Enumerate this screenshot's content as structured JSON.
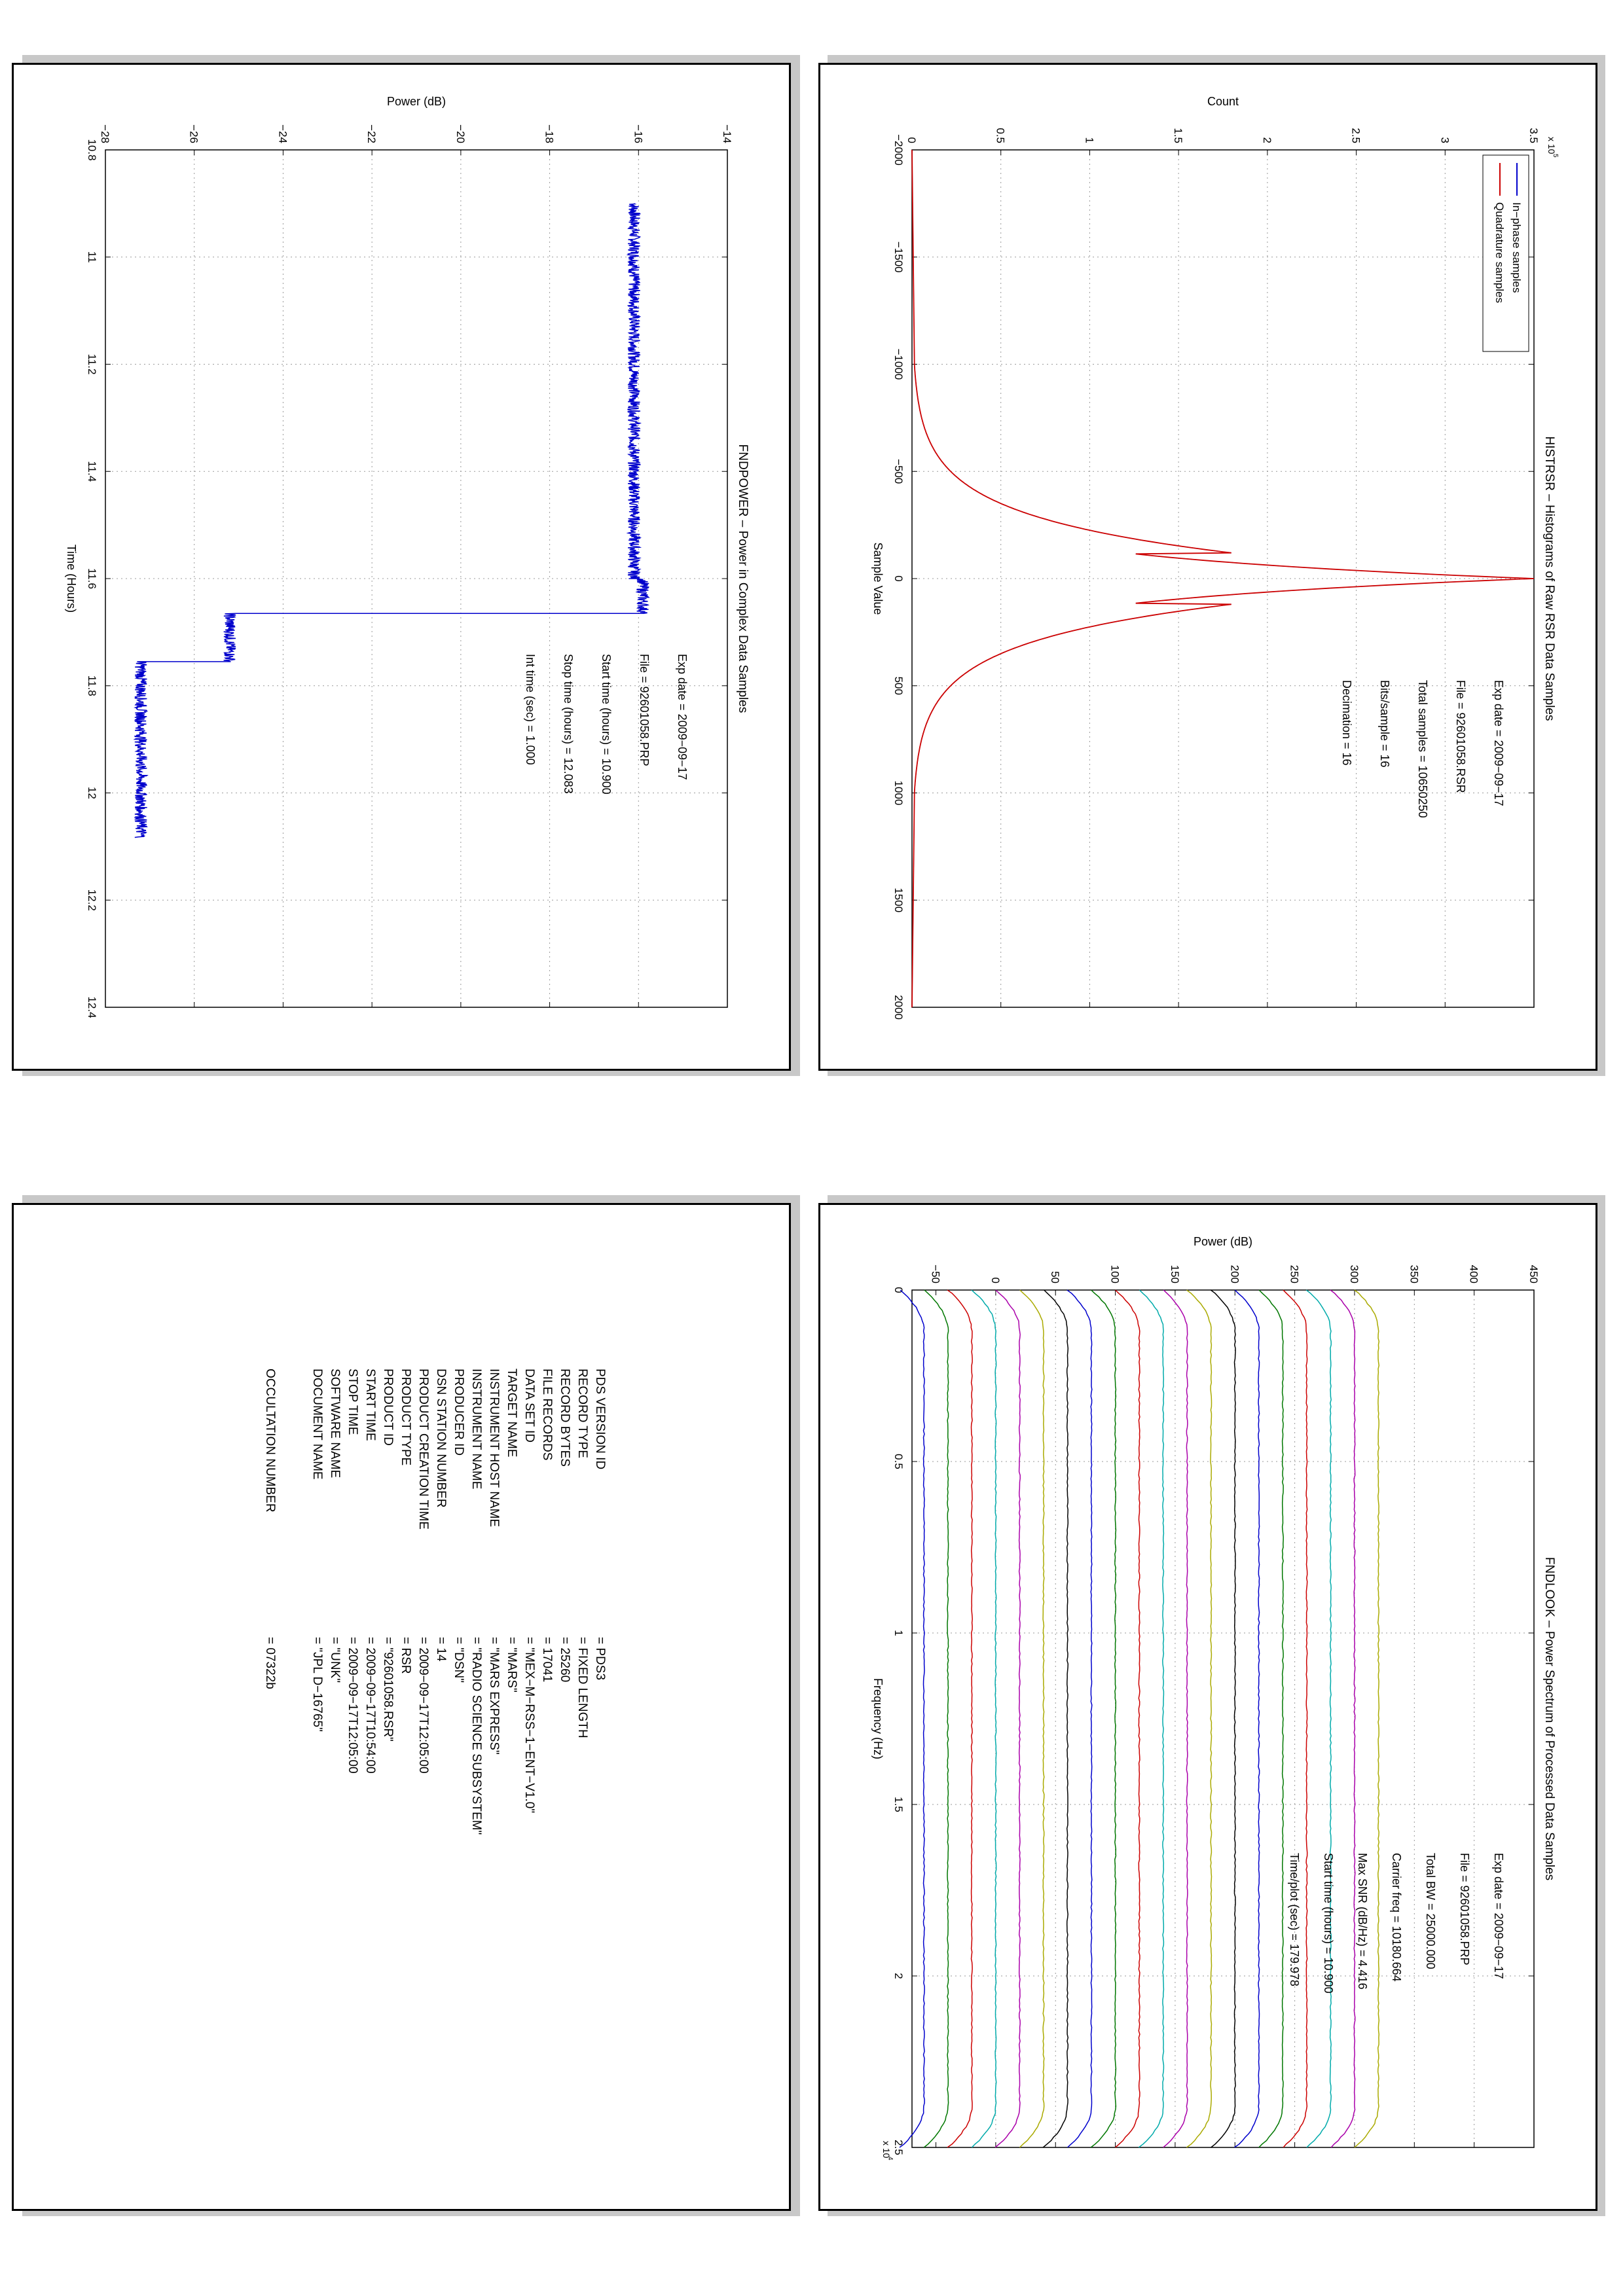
{
  "chart_data": [
    {
      "type": "line",
      "title": "HISTRSR – Histograms of Raw RSR Data Samples",
      "xlabel": "Sample Value",
      "ylabel": "Count",
      "y_multiplier": "x 10",
      "y_multiplier_exp": "5",
      "xlim": [
        -2000,
        2000
      ],
      "ylim": [
        0,
        3.5
      ],
      "xticks": [
        "−2000",
        "−1500",
        "−1000",
        "−500",
        "0",
        "500",
        "1000",
        "1500",
        "2000"
      ],
      "yticks": [
        "0",
        "0.5",
        "1",
        "1.5",
        "2",
        "2.5",
        "3",
        "3.5"
      ],
      "grid": true,
      "legend_position": "top-left",
      "series": [
        {
          "name": "In−phase samples",
          "color": "#0000cc",
          "x": [
            -800,
            -600,
            -400,
            -200,
            0,
            200,
            400,
            600,
            800
          ],
          "y": [
            0,
            0.05,
            0.3,
            1.1,
            3.5,
            1.1,
            0.3,
            0.05,
            0
          ]
        },
        {
          "name": "Quadrature samples",
          "color": "#cc0000",
          "x": [
            -800,
            -600,
            -400,
            -200,
            0,
            200,
            400,
            600,
            800
          ],
          "y": [
            0,
            0.05,
            0.3,
            1.1,
            3.5,
            1.1,
            0.3,
            0.05,
            0
          ]
        }
      ],
      "annotations": [
        {
          "label": "Exp date = 2009−09−17"
        },
        {
          "label": "File = 92601058.RSR"
        },
        {
          "label": "Total samples =  10650250"
        },
        {
          "label": "Bits/sample   =          16"
        },
        {
          "label": "Decimation    =          16"
        }
      ]
    },
    {
      "type": "line",
      "title": "FNDPOWER – Power in Complex Data Samples",
      "xlabel": "Time (Hours)",
      "ylabel": "Power (dB)",
      "xlim": [
        10.8,
        12.4
      ],
      "ylim": [
        -28,
        -14
      ],
      "xticks": [
        "10.8",
        "11",
        "11.2",
        "11.4",
        "11.6",
        "11.8",
        "12",
        "12.2",
        "12.4"
      ],
      "yticks": [
        "−28",
        "−26",
        "−24",
        "−22",
        "−20",
        "−18",
        "−16",
        "−14"
      ],
      "grid": true,
      "series": [
        {
          "color": "#0000cc",
          "x": [
            10.9,
            11.6,
            11.6,
            11.665,
            11.665,
            11.755,
            11.755,
            12.083
          ],
          "y": [
            -16.1,
            -16.1,
            -15.9,
            -15.9,
            -25.2,
            -25.2,
            -27.2,
            -27.2
          ]
        }
      ],
      "annotations": [
        {
          "label": "Exp date = 2009−09−17"
        },
        {
          "label": "File = 92601058.PRP"
        },
        {
          "label": "Start time (hours) = 10.900"
        },
        {
          "label": "Stop time (hours) =  12.083"
        },
        {
          "label": "Int time (sec) =        1.000"
        }
      ]
    },
    {
      "type": "line",
      "title": "FNDLOOK – Power Spectrum of Processed Data Samples",
      "xlabel": "Frequency (Hz)",
      "ylabel": "Power (dB)",
      "x_multiplier": "x 10",
      "x_multiplier_exp": "4",
      "xlim": [
        0,
        2.5
      ],
      "ylim": [
        -70,
        450
      ],
      "xticks": [
        "0",
        "0.5",
        "1",
        "1.5",
        "2",
        "2.5"
      ],
      "yticks": [
        "−50",
        "0",
        "50",
        "100",
        "150",
        "200",
        "250",
        "300",
        "350",
        "400",
        "450"
      ],
      "grid": true,
      "n_traces": 20,
      "trace_top_db": -60,
      "trace_step_db": 20,
      "trace_drop_db": 20,
      "trace_colors": [
        "#0000cc",
        "#007700",
        "#cc0000",
        "#00aaaa",
        "#aa00aa",
        "#aaaa00",
        "#000000"
      ],
      "annotations": [
        {
          "label": "Exp date = 2009−09−17"
        },
        {
          "label": "File = 92601058.PRP"
        },
        {
          "label": "Total BW =       25000.000"
        },
        {
          "label": "Carrier freq =  10180.664"
        },
        {
          "label": "Max SNR (dB/Hz) =    4.416"
        },
        {
          "label": "Start time (hours) =  10.900"
        },
        {
          "label": "Time/plot (sec) =    179.978"
        }
      ]
    }
  ],
  "label_panel": {
    "rows": [
      {
        "key": "PDS VERSION ID",
        "value": "=   PDS3"
      },
      {
        "key": "RECORD TYPE",
        "value": "=   FIXED LENGTH"
      },
      {
        "key": "RECORD BYTES",
        "value": "=   25260"
      },
      {
        "key": "FILE RECORDS",
        "value": "=   17041"
      },
      {
        "key": "DATA SET ID",
        "value": "=   \"MEX−M−RSS−1−ENT−V1.0\""
      },
      {
        "key": "TARGET NAME",
        "value": "=   \"MARS\""
      },
      {
        "key": "INSTRUMENT HOST NAME",
        "value": "=   \"MARS EXPRESS\""
      },
      {
        "key": "INSTRUMENT NAME",
        "value": "=   \"RADIO SCIENCE SUBSYSTEM\""
      },
      {
        "key": "PRODUCER ID",
        "value": "=   \"DSN\""
      },
      {
        "key": "DSN STATION NUMBER",
        "value": "=   14"
      },
      {
        "key": "PRODUCT CREATION TIME",
        "value": "=   2009−09−17T12:05:00"
      },
      {
        "key": "PRODUCT TYPE",
        "value": "=   RSR"
      },
      {
        "key": "PRODUCT ID",
        "value": "=   \"92601058.RSR\""
      },
      {
        "key": "START TIME",
        "value": "=   2009−09−17T10:54:00"
      },
      {
        "key": "STOP TIME",
        "value": "=   2009−09−17T12:05:00"
      },
      {
        "key": "SOFTWARE NAME",
        "value": "=   \"UNK\""
      },
      {
        "key": "DOCUMENT NAME",
        "value": "=   \"JPL D−16765\""
      }
    ],
    "extra_row": {
      "key": "OCCULTATION NUMBER",
      "value": "=   07322b"
    }
  }
}
